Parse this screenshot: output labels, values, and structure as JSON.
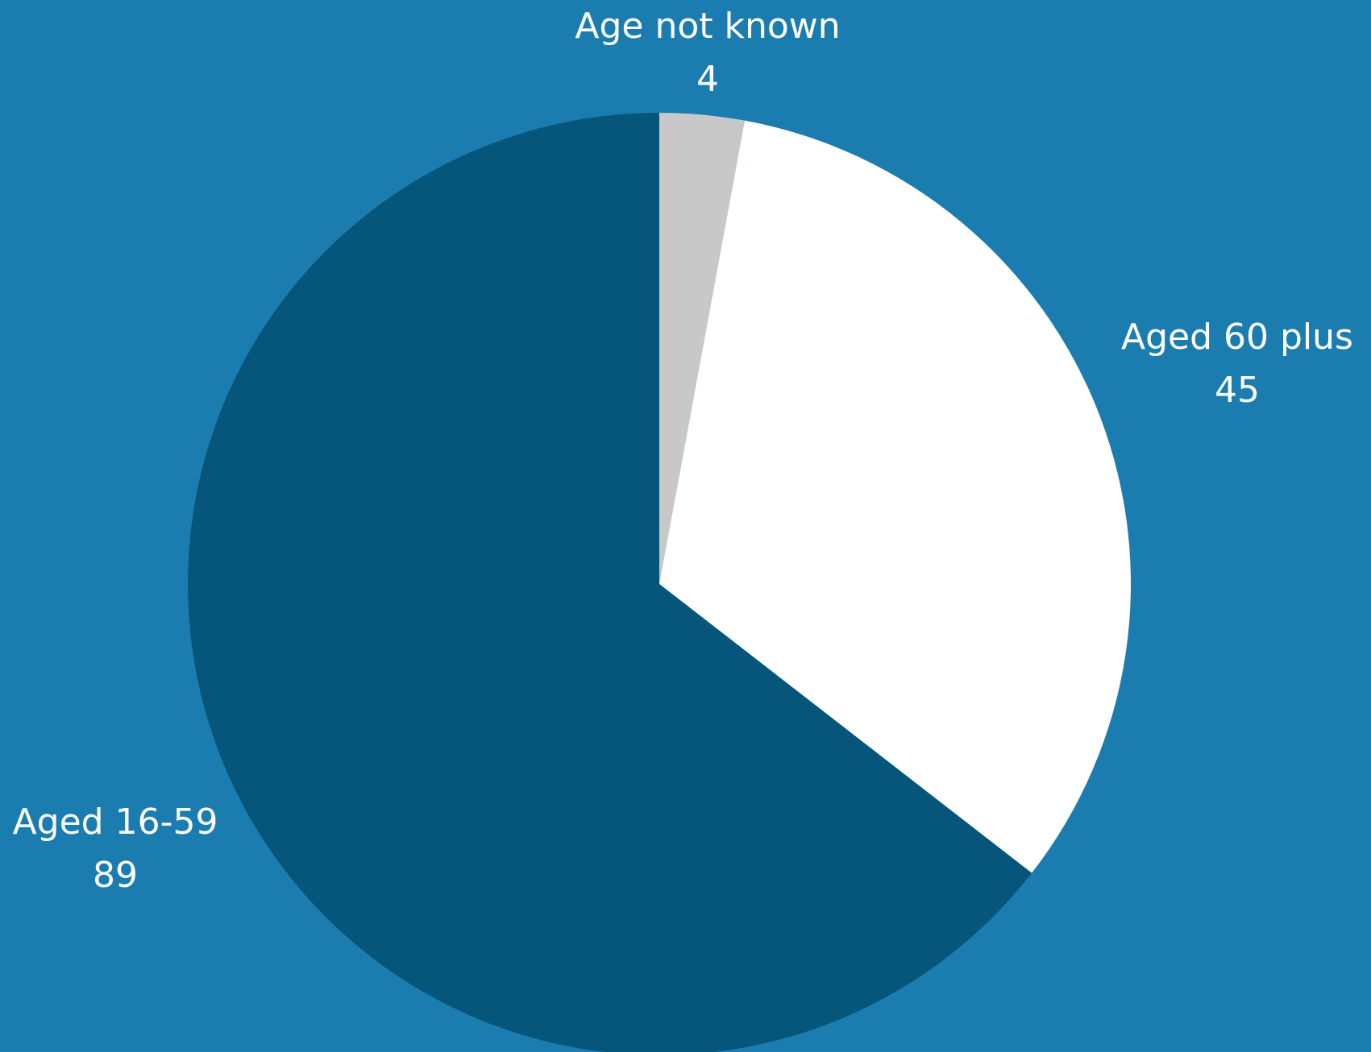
{
  "chart_data": {
    "type": "pie",
    "background": "#1b7daf",
    "start_angle_deg": 0,
    "direction": "clockwise",
    "slices": [
      {
        "label": "Age not known",
        "value": 4,
        "color": "#c8c8c8"
      },
      {
        "label": "Aged 60 plus",
        "value": 45,
        "color": "#ffffff"
      },
      {
        "label": "Aged 16-59",
        "value": 89,
        "color": "#06567c"
      }
    ]
  }
}
